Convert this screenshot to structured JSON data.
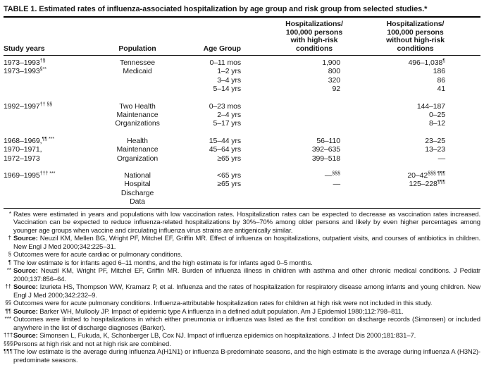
{
  "colors": {
    "background": "#ffffff",
    "text": "#1a1a1a",
    "rule": "#000000"
  },
  "title": "TABLE 1. Estimated rates of influenza-associated hospitalization by age group and risk group from selected studies.*",
  "table": {
    "headers": [
      "Study years",
      "Population",
      "Age Group",
      "Hospitalizations/\n100,000 persons\nwith high-risk\nconditions",
      "Hospitalizations/\n100,000 persons\nwithout high-risk\nconditions"
    ],
    "rows": [
      [
        "1973–1993^{†§}",
        "Tennessee",
        "0–11 mos",
        "1,900",
        "496–1,038^{¶}"
      ],
      [
        "1973–1993^{§**}",
        "Medicaid",
        "1–2 yrs",
        "800",
        "186"
      ],
      [
        "",
        "",
        "3–4 yrs",
        "320",
        "86"
      ],
      [
        "",
        "",
        "5–14 yrs",
        "92",
        "41"
      ],
      null,
      [
        "1992–1997^{†† §§}",
        "Two Health",
        "0–23 mos",
        "",
        "144–187"
      ],
      [
        "",
        "Maintenance",
        "2–4 yrs",
        "",
        "0–25"
      ],
      [
        "",
        "Organizations",
        "5–17 yrs",
        "",
        "8–12"
      ],
      null,
      [
        "1968–1969,^{¶¶ ***}",
        "Health",
        "15–44 yrs",
        "56–110",
        "23–25"
      ],
      [
        "1970–1971,",
        "Maintenance",
        "45–64 yrs",
        "392–635",
        "13–23"
      ],
      [
        "1972–1973",
        "Organization",
        "≥65 yrs",
        "399–518",
        "—"
      ],
      null,
      [
        "1969–1995^{††† ***}",
        "National",
        "<65 yrs",
        "—^{§§§}",
        "20–42^{§§§ ¶¶¶}"
      ],
      [
        "",
        "Hospital",
        "≥65 yrs",
        "—",
        "125–228^{¶¶¶}"
      ],
      [
        "",
        "Discharge",
        "",
        "",
        ""
      ],
      [
        "",
        "Data",
        "",
        "",
        ""
      ]
    ]
  },
  "footnotes": [
    {
      "marker": "*",
      "bold": "",
      "text": "Rates were estimated in years and populations with low vaccination rates. Hospitalization rates can be expected to decrease as vaccination rates increased. Vaccination can be expected to reduce influenza-related hospitalizations by 30%–70% among older persons and likely by even higher percentages among younger age groups when vaccine and circulating influenza virus strains are antigenically similar."
    },
    {
      "marker": "†",
      "bold": "Source:",
      "text": " Neuzil KM, Mellen BG, Wright PF, Mitchel EF, Griffin MR. Effect of influenza on hospitalizations, outpatient visits, and courses of antibiotics in children. New Engl J Med 2000;342:225–31."
    },
    {
      "marker": "§",
      "bold": "",
      "text": "Outcomes were for acute cardiac or pulmonary conditions."
    },
    {
      "marker": "¶",
      "bold": "",
      "text": "The low estimate is for infants aged 6–11 months, and the high estimate is for infants aged 0–5 months."
    },
    {
      "marker": "**",
      "bold": "Source:",
      "text": " Neuzil KM, Wright PF, Mitchel EF, Griffin MR. Burden of influenza illness in children with asthma and other chronic medical conditions. J Pediatr 2000;137:856–64."
    },
    {
      "marker": "††",
      "bold": "Source:",
      "text": " Izurieta HS, Thompson WW, Kramarz P, et al. Influenza and the rates of hospitalization for respiratory disease among infants and young children. New Engl J Med 2000;342:232–9."
    },
    {
      "marker": "§§",
      "bold": "",
      "text": "Outcomes were for acute pulmonary conditions. Influenza-attributable hospitalization rates for children at high risk were not included in this study."
    },
    {
      "marker": "¶¶",
      "bold": "Source:",
      "text": " Barker WH, Mullooly JP. Impact of epidemic type A influenza in a defined adult population. Am J Epidemiol 1980;112:798–811."
    },
    {
      "marker": "***",
      "bold": "",
      "text": "Outcomes were limited to hospitalizations in which either pneumonia or influenza was listed as the first condition on discharge records (Simonsen) or included anywhere in the list of discharge diagnoses (Barker)."
    },
    {
      "marker": "†††",
      "bold": "Source:",
      "text": " Simonsen L, Fukuda, K, Schonberger LB, Cox NJ. Impact of influenza epidemics on hospitalizations. J Infect Dis 2000;181:831–7."
    },
    {
      "marker": "§§§",
      "bold": "",
      "text": "Persons at high risk and not at high risk are combined."
    },
    {
      "marker": "¶¶¶",
      "bold": "",
      "text": "The low estimate is the average during influenza A(H1N1) or influenza B-predominate seasons, and the high estimate is the average during influenza A (H3N2)-predominate seasons."
    }
  ]
}
